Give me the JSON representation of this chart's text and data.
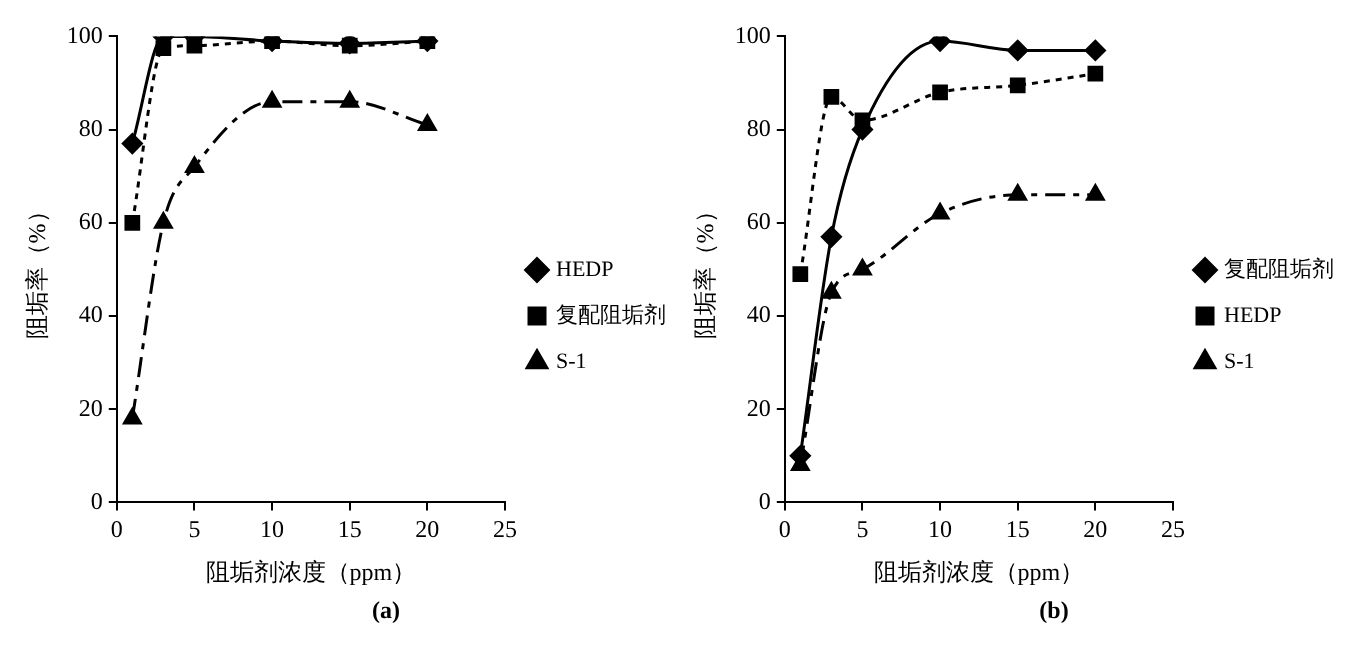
{
  "chart_data": [
    {
      "type": "line",
      "title": "(a)",
      "xlabel": "阻垢剂浓度（ppm）",
      "ylabel": "阻垢率（%）",
      "x": [
        1,
        3,
        5,
        10,
        15,
        20
      ],
      "xlim": [
        0,
        25
      ],
      "xticks": [
        0,
        5,
        10,
        15,
        20,
        25
      ],
      "ylim": [
        0,
        100
      ],
      "yticks": [
        0,
        20,
        40,
        60,
        80,
        100
      ],
      "grid": false,
      "legend": "right",
      "series": [
        {
          "name": "HEDP",
          "color": "#000000",
          "marker": "diamond",
          "line_style": "solid",
          "values": [
            77,
            100,
            100,
            99,
            98.5,
            99
          ]
        },
        {
          "name": "复配阻垢剂",
          "color": "#000000",
          "marker": "square",
          "line_style": "dotted",
          "values": [
            60,
            97.5,
            98,
            99,
            98,
            99
          ]
        },
        {
          "name": "S-1",
          "color": "#000000",
          "marker": "triangle",
          "line_style": "dashed",
          "values": [
            18,
            60,
            72,
            86,
            86,
            81
          ]
        }
      ]
    },
    {
      "type": "line",
      "title": "(b)",
      "xlabel": "阻垢剂浓度（ppm）",
      "ylabel": "阻垢率（%）",
      "x": [
        1,
        3,
        5,
        10,
        15,
        20
      ],
      "xlim": [
        0,
        25
      ],
      "xticks": [
        0,
        5,
        10,
        15,
        20,
        25
      ],
      "ylim": [
        0,
        100
      ],
      "yticks": [
        0,
        20,
        40,
        60,
        80,
        100
      ],
      "grid": false,
      "legend": "right",
      "series": [
        {
          "name": "复配阻垢剂",
          "color": "#000000",
          "marker": "diamond",
          "line_style": "solid",
          "values": [
            10,
            57,
            80,
            99,
            97,
            97
          ]
        },
        {
          "name": "HEDP",
          "color": "#000000",
          "marker": "square",
          "line_style": "dotted",
          "values": [
            49,
            87,
            82,
            88,
            89.5,
            92
          ]
        },
        {
          "name": "S-1",
          "color": "#000000",
          "marker": "triangle",
          "line_style": "dashed",
          "values": [
            8,
            45,
            50,
            62,
            66,
            66
          ]
        }
      ]
    }
  ]
}
